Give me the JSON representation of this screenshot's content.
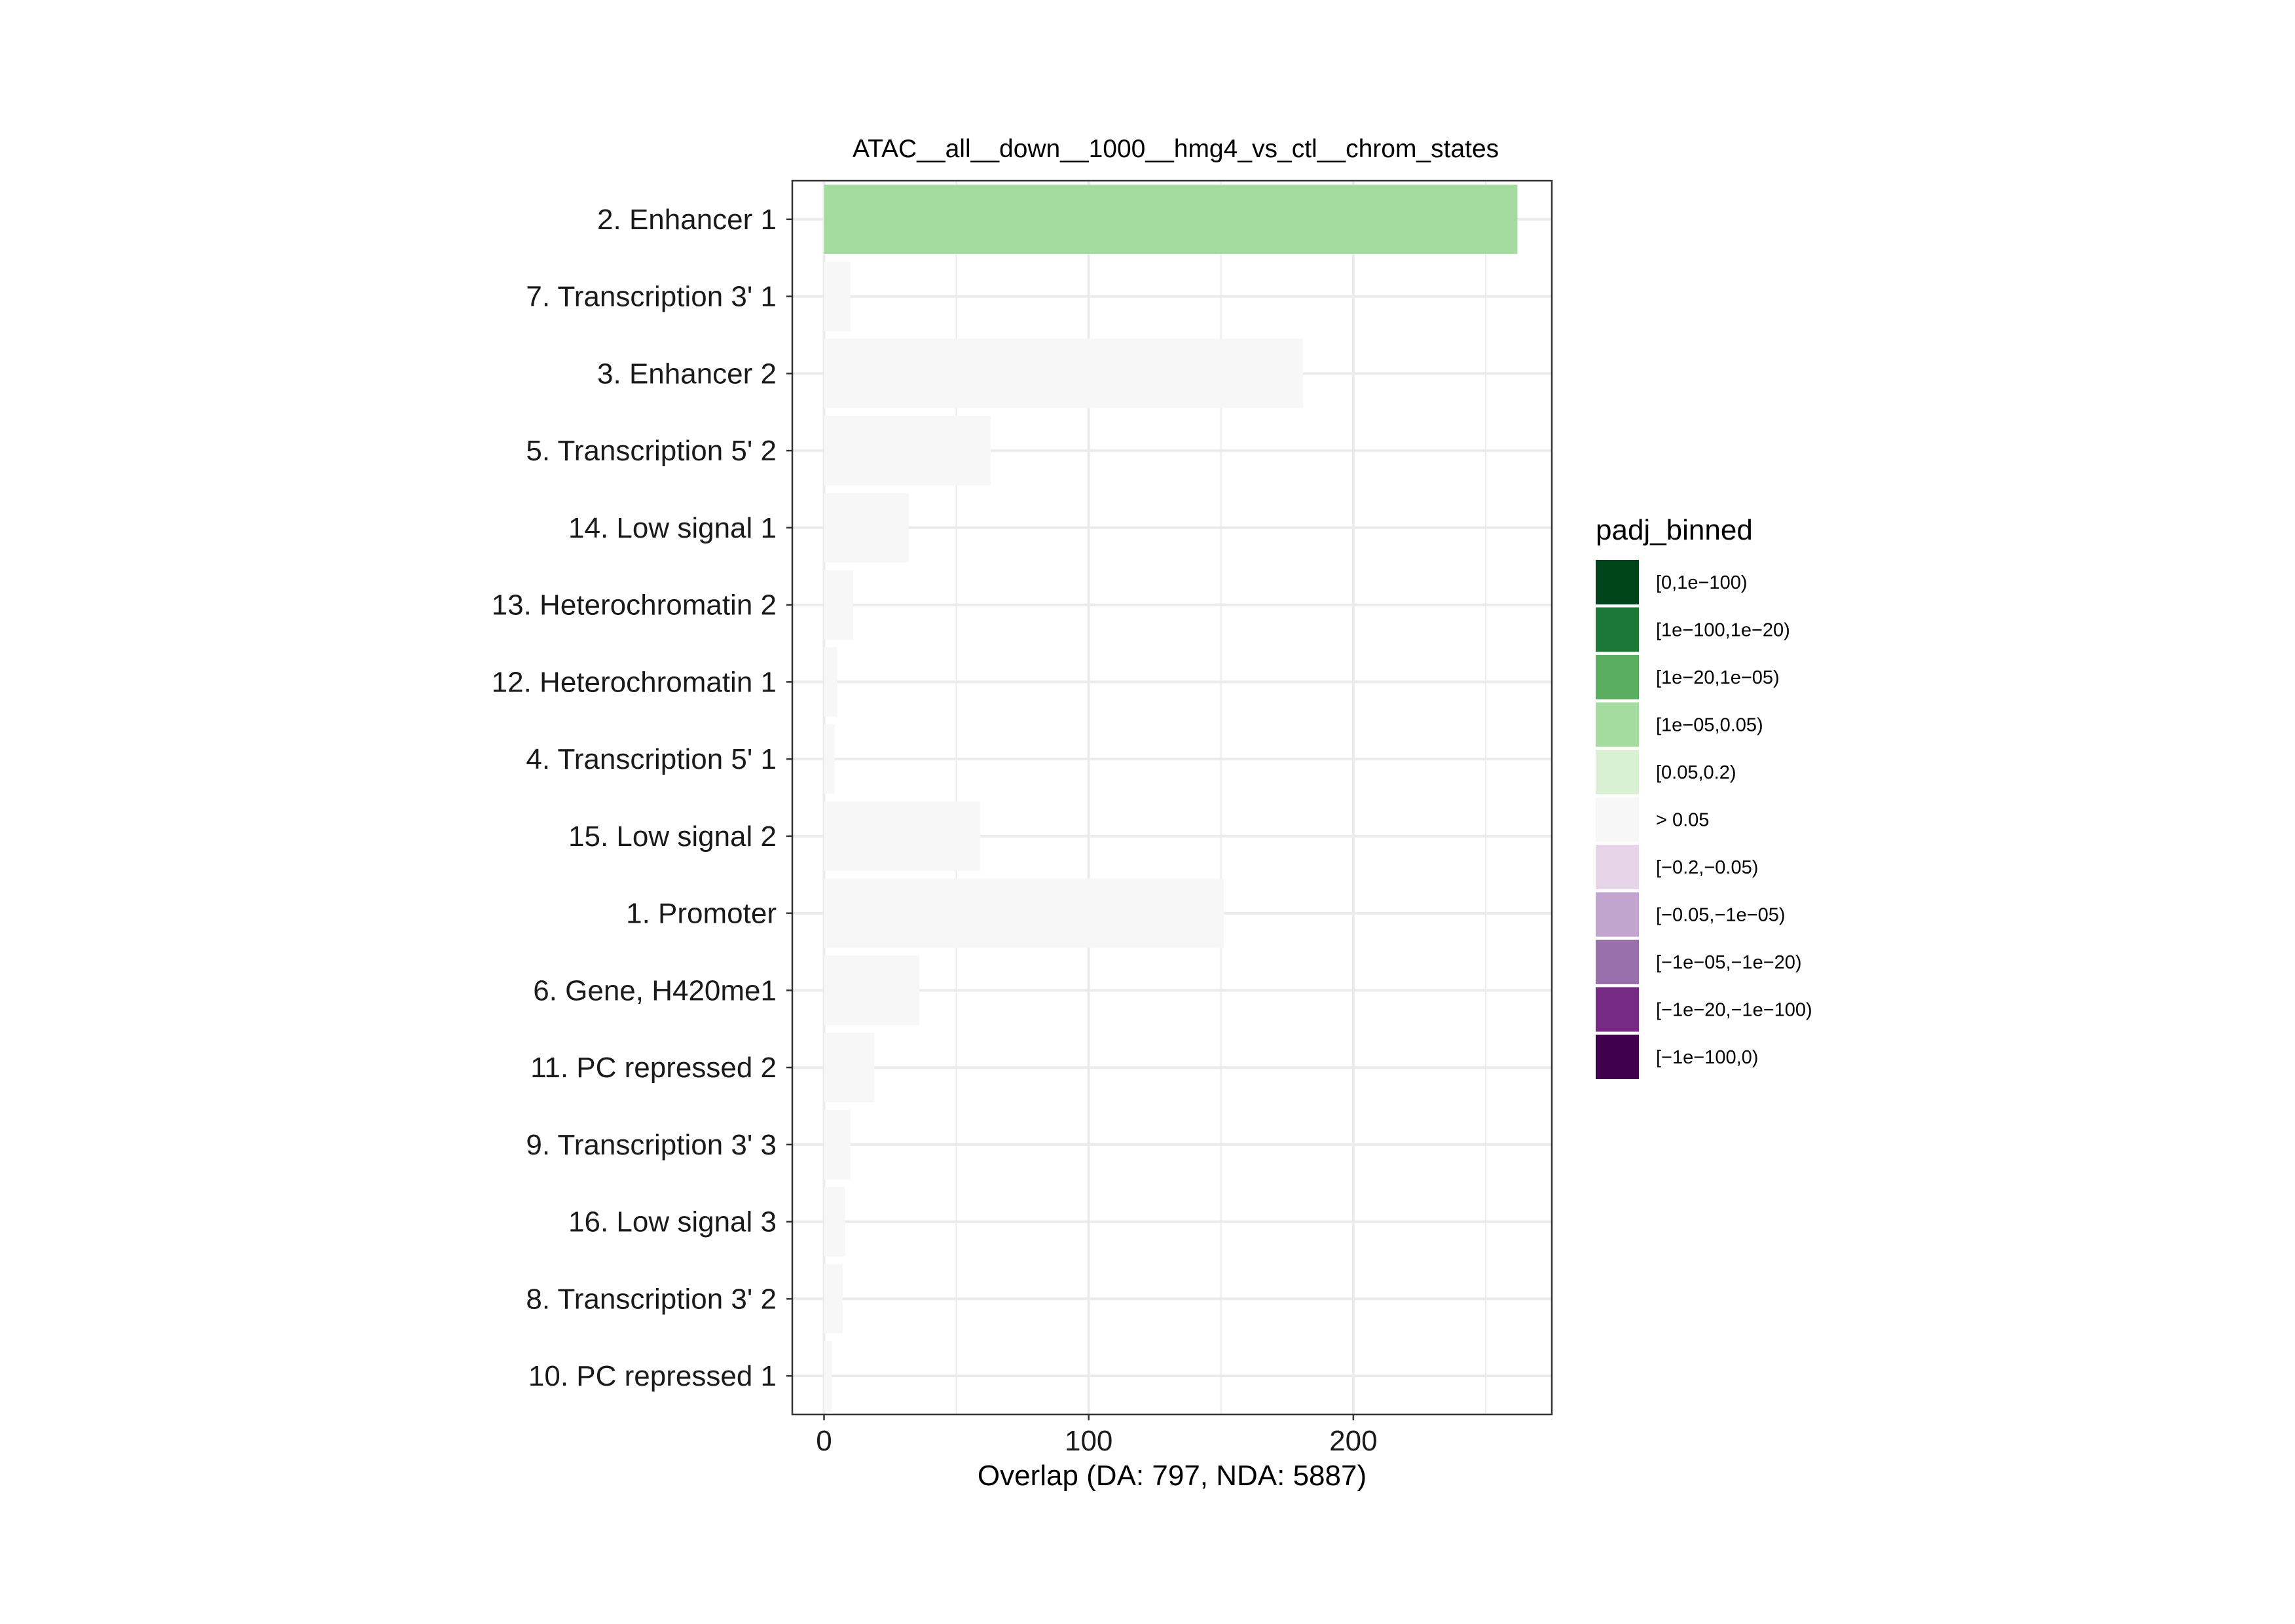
{
  "chart_data": {
    "type": "bar",
    "orientation": "horizontal",
    "title": "ATAC__all__down__1000__hmg4_vs_ctl__chrom_states",
    "xlabel": "Overlap (DA: 797, NDA: 5887)",
    "ylabel": "",
    "xlim": [
      -12,
      275
    ],
    "xticks": [
      0,
      100,
      200
    ],
    "grid": true,
    "legend_position": "right",
    "categories": [
      "2. Enhancer 1",
      "7. Transcription 3' 1",
      "3. Enhancer 2",
      "5. Transcription 5' 2",
      "14. Low signal 1",
      "13. Heterochromatin 2",
      "12. Heterochromatin 1",
      "4. Transcription 5' 1",
      "15. Low signal 2",
      "1. Promoter",
      "6. Gene, H420me1",
      "11. PC repressed 2",
      "9. Transcription 3' 3",
      "16. Low signal 3",
      "8. Transcription 3' 2",
      "10. PC repressed 1"
    ],
    "values": [
      262,
      10,
      181,
      63,
      32,
      11,
      5,
      4,
      59,
      151,
      36,
      19,
      10,
      8,
      7,
      3
    ],
    "bin": [
      "[1e-05,0.05)",
      "> 0.05",
      "> 0.05",
      "> 0.05",
      "> 0.05",
      "> 0.05",
      "> 0.05",
      "> 0.05",
      "> 0.05",
      "> 0.05",
      "> 0.05",
      "> 0.05",
      "> 0.05",
      "> 0.05",
      "> 0.05",
      "> 0.05"
    ],
    "legend": {
      "title": "padj_binned",
      "entries": [
        {
          "label": "[0,1e−100)",
          "color": "#00441b"
        },
        {
          "label": "[1e−100,1e−20)",
          "color": "#1b7837"
        },
        {
          "label": "[1e−20,1e−05)",
          "color": "#5aae61"
        },
        {
          "label": "[1e−05,0.05)",
          "color": "#a6dba0"
        },
        {
          "label": "[0.05,0.2)",
          "color": "#d9f0d3"
        },
        {
          "label": "> 0.05",
          "color": "#f7f7f7"
        },
        {
          "label": "[−0.2,−0.05)",
          "color": "#e7d4e8"
        },
        {
          "label": "[−0.05,−1e−05)",
          "color": "#c2a5cf"
        },
        {
          "label": "[−1e−05,−1e−20)",
          "color": "#9970ab"
        },
        {
          "label": "[−1e−20,−1e−100)",
          "color": "#762a83"
        },
        {
          "label": "[−1e−100,0)",
          "color": "#40004b"
        }
      ]
    },
    "bin_colors": {
      "[1e-05,0.05)": "#a6dba0",
      "> 0.05": "#f7f7f7"
    }
  }
}
